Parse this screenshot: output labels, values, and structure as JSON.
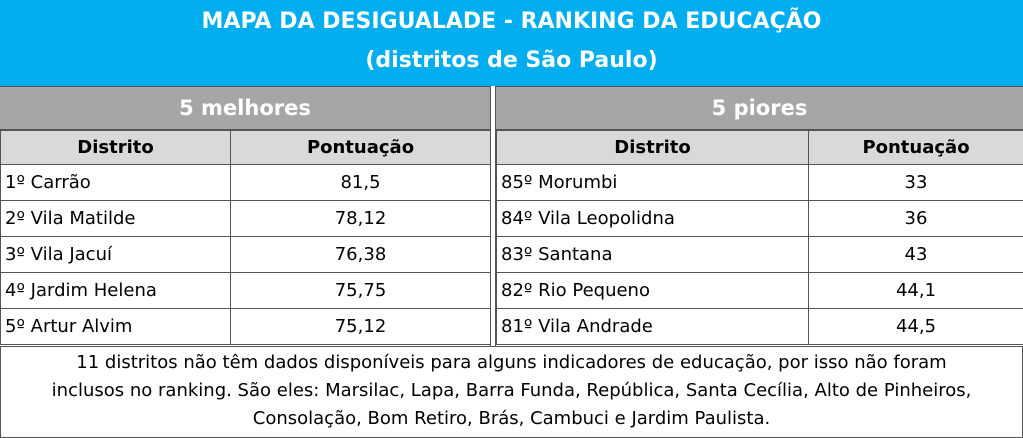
{
  "title": {
    "line1": "MAPA DA DESIGUALADE - RANKING DA EDUCAÇÃO",
    "line2": "(distritos de São Paulo)"
  },
  "best": {
    "heading": "5 melhores",
    "col_district": "Distrito",
    "col_score": "Pontuação",
    "rows": [
      {
        "district": "1º Carrão",
        "score": "81,5"
      },
      {
        "district": "2º Vila Matilde",
        "score": "78,12"
      },
      {
        "district": "3º Vila Jacuí",
        "score": "76,38"
      },
      {
        "district": "4º Jardim Helena",
        "score": "75,75"
      },
      {
        "district": "5º Artur Alvim",
        "score": "75,12"
      }
    ]
  },
  "worst": {
    "heading": "5 piores",
    "col_district": "Distrito",
    "col_score": "Pontuação",
    "rows": [
      {
        "district": "85º Morumbi",
        "score": "33"
      },
      {
        "district": "84º Vila Leopolidna",
        "score": "36"
      },
      {
        "district": "83º Santana",
        "score": "43"
      },
      {
        "district": "82º Rio Pequeno",
        "score": "44,1"
      },
      {
        "district": "81º Vila Andrade",
        "score": "44,5"
      }
    ]
  },
  "note": {
    "line1": "11 distritos não têm dados disponíveis para alguns indicadores de educação, por isso não foram",
    "line2": "inclusos no ranking. São eles: Marsilac, Lapa, Barra Funda, República, Santa Cecília, Alto de Pinheiros,",
    "line3": "Consolação, Bom Retiro, Brás, Cambuci e Jardim Paulista."
  },
  "colors": {
    "title_bg": "#00aeef",
    "group_header_bg": "#a6a6a6",
    "column_header_bg": "#d9d9d9"
  }
}
